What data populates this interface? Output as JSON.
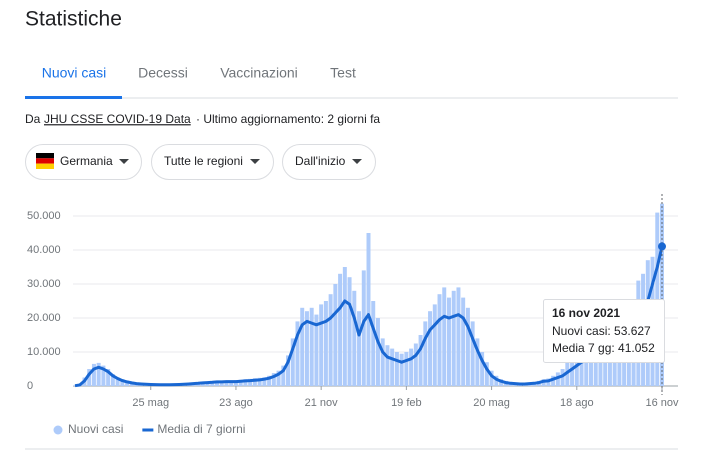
{
  "header": {
    "title": "Statistiche"
  },
  "tabs": [
    "Nuovi casi",
    "Decessi",
    "Vaccinazioni",
    "Test"
  ],
  "source": {
    "prefix": "Da",
    "link": "JHU CSSE COVID-19 Data",
    "suffix": "· Ultimo aggiornamento: 2 giorni fa"
  },
  "filters": [
    "Germania",
    "Tutte le regioni",
    "Dall'inizio"
  ],
  "tooltip": {
    "date": "16 nov 2021",
    "lines": [
      "Nuovi casi: 53.627",
      "Media 7 gg: 41.052"
    ]
  },
  "chart_data": {
    "type": "bar",
    "categories": [
      null,
      null,
      null,
      null,
      null,
      null,
      null,
      null,
      null,
      null,
      null,
      null,
      null,
      null,
      null,
      null,
      "25 mag",
      null,
      null,
      null,
      null,
      null,
      null,
      null,
      null,
      null,
      null,
      null,
      null,
      null,
      null,
      null,
      null,
      null,
      "23 ago",
      null,
      null,
      null,
      null,
      null,
      null,
      null,
      null,
      null,
      null,
      null,
      null,
      null,
      null,
      null,
      null,
      null,
      "21 nov",
      null,
      null,
      null,
      null,
      null,
      null,
      null,
      null,
      null,
      null,
      null,
      null,
      null,
      null,
      null,
      null,
      null,
      "19 feb",
      null,
      null,
      null,
      null,
      null,
      null,
      null,
      null,
      null,
      null,
      null,
      null,
      null,
      null,
      null,
      null,
      null,
      "20 mag",
      null,
      null,
      null,
      null,
      null,
      null,
      null,
      null,
      null,
      null,
      null,
      null,
      null,
      null,
      null,
      null,
      null,
      "18 ago",
      null,
      null,
      null,
      null,
      null,
      null,
      null,
      null,
      null,
      null,
      null,
      null,
      null,
      null,
      null,
      null,
      null,
      "16 nov"
    ],
    "series": [
      {
        "name": "Nuovi casi",
        "type": "bar",
        "color": "#aecbfa",
        "values": [
          200,
          600,
          2500,
          5000,
          6500,
          6800,
          6000,
          5000,
          3500,
          2500,
          2000,
          1400,
          1100,
          900,
          800,
          600,
          550,
          500,
          450,
          400,
          400,
          500,
          550,
          600,
          700,
          800,
          1000,
          1100,
          1300,
          1400,
          1500,
          1400,
          1600,
          1500,
          1700,
          1800,
          2000,
          2100,
          2300,
          2400,
          2600,
          3000,
          3800,
          4500,
          6000,
          9000,
          14000,
          19000,
          23000,
          22000,
          23000,
          21000,
          24000,
          25000,
          27000,
          30000,
          33000,
          35000,
          32000,
          28000,
          22000,
          34000,
          45000,
          25000,
          20000,
          14000,
          12000,
          11000,
          10000,
          9500,
          10000,
          11000,
          12500,
          15000,
          19000,
          22000,
          24000,
          27000,
          29000,
          26000,
          28000,
          29000,
          26000,
          23000,
          19000,
          14000,
          10000,
          7000,
          4500,
          3000,
          2000,
          1500,
          1200,
          1000,
          900,
          900,
          1000,
          1200,
          1500,
          2000,
          2200,
          3000,
          4000,
          5000,
          7000,
          9000,
          10000,
          11000,
          11000,
          10500,
          11000,
          12000,
          13000,
          13500,
          14000,
          15000,
          17000,
          20000,
          24000,
          31000,
          33000,
          37000,
          38000,
          51000,
          53627
        ]
      },
      {
        "name": "Media di 7 giorni",
        "type": "line",
        "color": "#1967d2",
        "values": [
          100,
          300,
          1500,
          3500,
          5000,
          5500,
          5000,
          4200,
          3000,
          2200,
          1600,
          1200,
          900,
          700,
          600,
          500,
          450,
          400,
          350,
          350,
          350,
          400,
          450,
          500,
          600,
          700,
          800,
          900,
          1000,
          1100,
          1200,
          1200,
          1300,
          1300,
          1300,
          1400,
          1500,
          1600,
          1700,
          1800,
          2000,
          2300,
          2800,
          3500,
          4500,
          7000,
          11000,
          15000,
          18000,
          19000,
          18500,
          18000,
          18500,
          19000,
          20000,
          21500,
          23000,
          25000,
          24000,
          20000,
          15000,
          19000,
          21000,
          17000,
          13000,
          10000,
          8500,
          8000,
          7500,
          7000,
          7500,
          8000,
          9000,
          11000,
          14000,
          16500,
          18000,
          19500,
          20500,
          20000,
          20500,
          21000,
          20000,
          17500,
          14000,
          10500,
          7500,
          5000,
          3000,
          2000,
          1400,
          1000,
          800,
          700,
          600,
          600,
          700,
          800,
          1000,
          1400,
          1500,
          2000,
          2500,
          3000,
          4000,
          5000,
          6000,
          7000,
          7500,
          8000,
          8000,
          8500,
          9000,
          9500,
          10000,
          11000,
          12000,
          14000,
          16000,
          18000,
          21000,
          25000,
          30000,
          35000,
          41052
        ]
      }
    ],
    "ylim": [
      0,
      55000
    ],
    "yticks": [
      0,
      {
        "value": 10000,
        "label": "10.000"
      },
      {
        "value": 20000,
        "label": "20.000"
      },
      {
        "value": 30000,
        "label": "30.000"
      },
      {
        "value": 40000,
        "label": "40.000"
      },
      {
        "value": 50000,
        "label": "50.000"
      }
    ],
    "grid": true
  }
}
